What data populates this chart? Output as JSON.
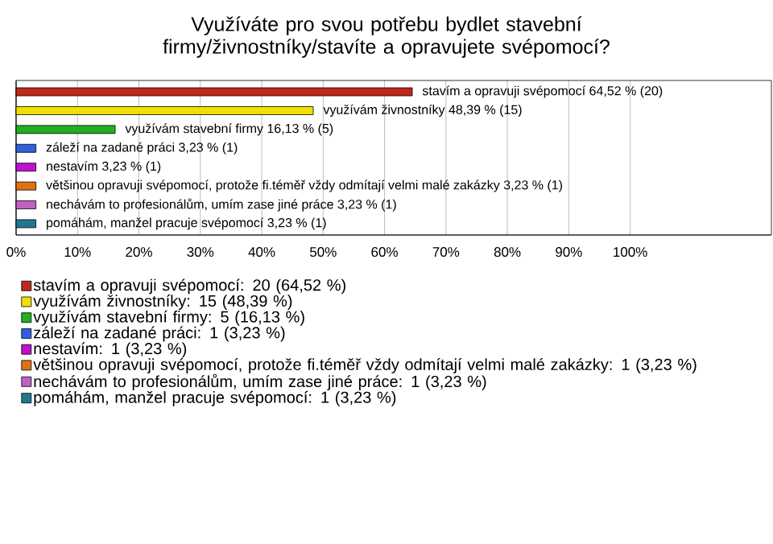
{
  "chart_data": {
    "type": "bar",
    "orientation": "horizontal",
    "title": "Využíváte pro svou potřebu bydlet stavební firmy/živnostníky/stavíte a opravujete svépomocí?",
    "categories": [
      null,
      null,
      null,
      null,
      null,
      null,
      null,
      null
    ],
    "series": [
      {
        "name": "stavím a opravuji svépomocí: 20 (64,52 %)",
        "color": "#c0281c",
        "values": [
          64.52,
          null,
          null,
          null,
          null,
          null,
          null,
          null
        ],
        "value_labels": [
          "stavím a opravuji svépomocí 64,52 % (20)",
          null,
          null,
          null,
          null,
          null,
          null,
          null
        ]
      },
      {
        "name": "využívám živnostníky: 15 (48,39 %)",
        "color": "#f0e000",
        "values": [
          null,
          48.39,
          null,
          null,
          null,
          null,
          null,
          null
        ],
        "value_labels": [
          null,
          "využívám živnostníky 48,39 % (15)",
          null,
          null,
          null,
          null,
          null,
          null
        ]
      },
      {
        "name": "využívám stavební firmy: 5 (16,13 %)",
        "color": "#20b020",
        "values": [
          null,
          null,
          16.13,
          null,
          null,
          null,
          null,
          null
        ],
        "value_labels": [
          null,
          null,
          "využívám stavební firmy 16,13 % (5)",
          null,
          null,
          null,
          null,
          null
        ]
      },
      {
        "name": "záleží na zadané práci: 1 (3,23 %)",
        "color": "#3060e0",
        "values": [
          null,
          null,
          null,
          3.23,
          null,
          null,
          null,
          null
        ],
        "value_labels": [
          null,
          null,
          null,
          "záleží na zadané práci 3,23 % (1)",
          null,
          null,
          null,
          null
        ]
      },
      {
        "name": "nestavím: 1 (3,23 %)",
        "color": "#c010d0",
        "values": [
          null,
          null,
          null,
          null,
          3.23,
          null,
          null,
          null
        ],
        "value_labels": [
          null,
          null,
          null,
          null,
          "nestavím 3,23 % (1)",
          null,
          null,
          null
        ]
      },
      {
        "name": "většinou opravuji svépomocí, protože fi.téměř vždy odmítají velmi malé zakázky: 1 (3,23 %)",
        "color": "#e07010",
        "values": [
          null,
          null,
          null,
          null,
          null,
          3.23,
          null,
          null
        ],
        "value_labels": [
          null,
          null,
          null,
          null,
          null,
          "většinou opravuji svépomocí, protože fi.téměř vždy odmítají velmi malé zakázky 3,23 % (1)",
          null,
          null
        ]
      },
      {
        "name": "nechávám to profesionálům, umím zase jiné práce: 1 (3,23 %)",
        "color": "#c060c0",
        "values": [
          null,
          null,
          null,
          null,
          null,
          null,
          3.23,
          null
        ],
        "value_labels": [
          null,
          null,
          null,
          null,
          null,
          null,
          "nechávám to profesionálům, umím zase jiné práce 3,23 % (1)",
          null
        ]
      },
      {
        "name": "pomáhám, manžel pracuje svépomocí: 1 (3,23 %)",
        "color": "#207890",
        "values": [
          null,
          null,
          null,
          null,
          null,
          null,
          null,
          3.23
        ],
        "value_labels": [
          null,
          null,
          null,
          null,
          null,
          null,
          null,
          "pomáhám, manžel pracuje svépomocí 3,23 % (1)"
        ]
      }
    ],
    "xlim": [
      0,
      123
    ],
    "xticks": [
      {
        "value": 0,
        "label": "0%"
      },
      {
        "value": 10,
        "label": "10%"
      },
      {
        "value": 20,
        "label": "20%"
      },
      {
        "value": 30,
        "label": "30%"
      },
      {
        "value": 40,
        "label": "40%"
      },
      {
        "value": 50,
        "label": "50%"
      },
      {
        "value": 60,
        "label": "60%"
      },
      {
        "value": 70,
        "label": "70%"
      },
      {
        "value": 80,
        "label": "80%"
      },
      {
        "value": 90,
        "label": "90%"
      },
      {
        "value": 100,
        "label": "100%"
      }
    ],
    "grid": "x",
    "legend": "bottom",
    "tick_labels": "x"
  }
}
